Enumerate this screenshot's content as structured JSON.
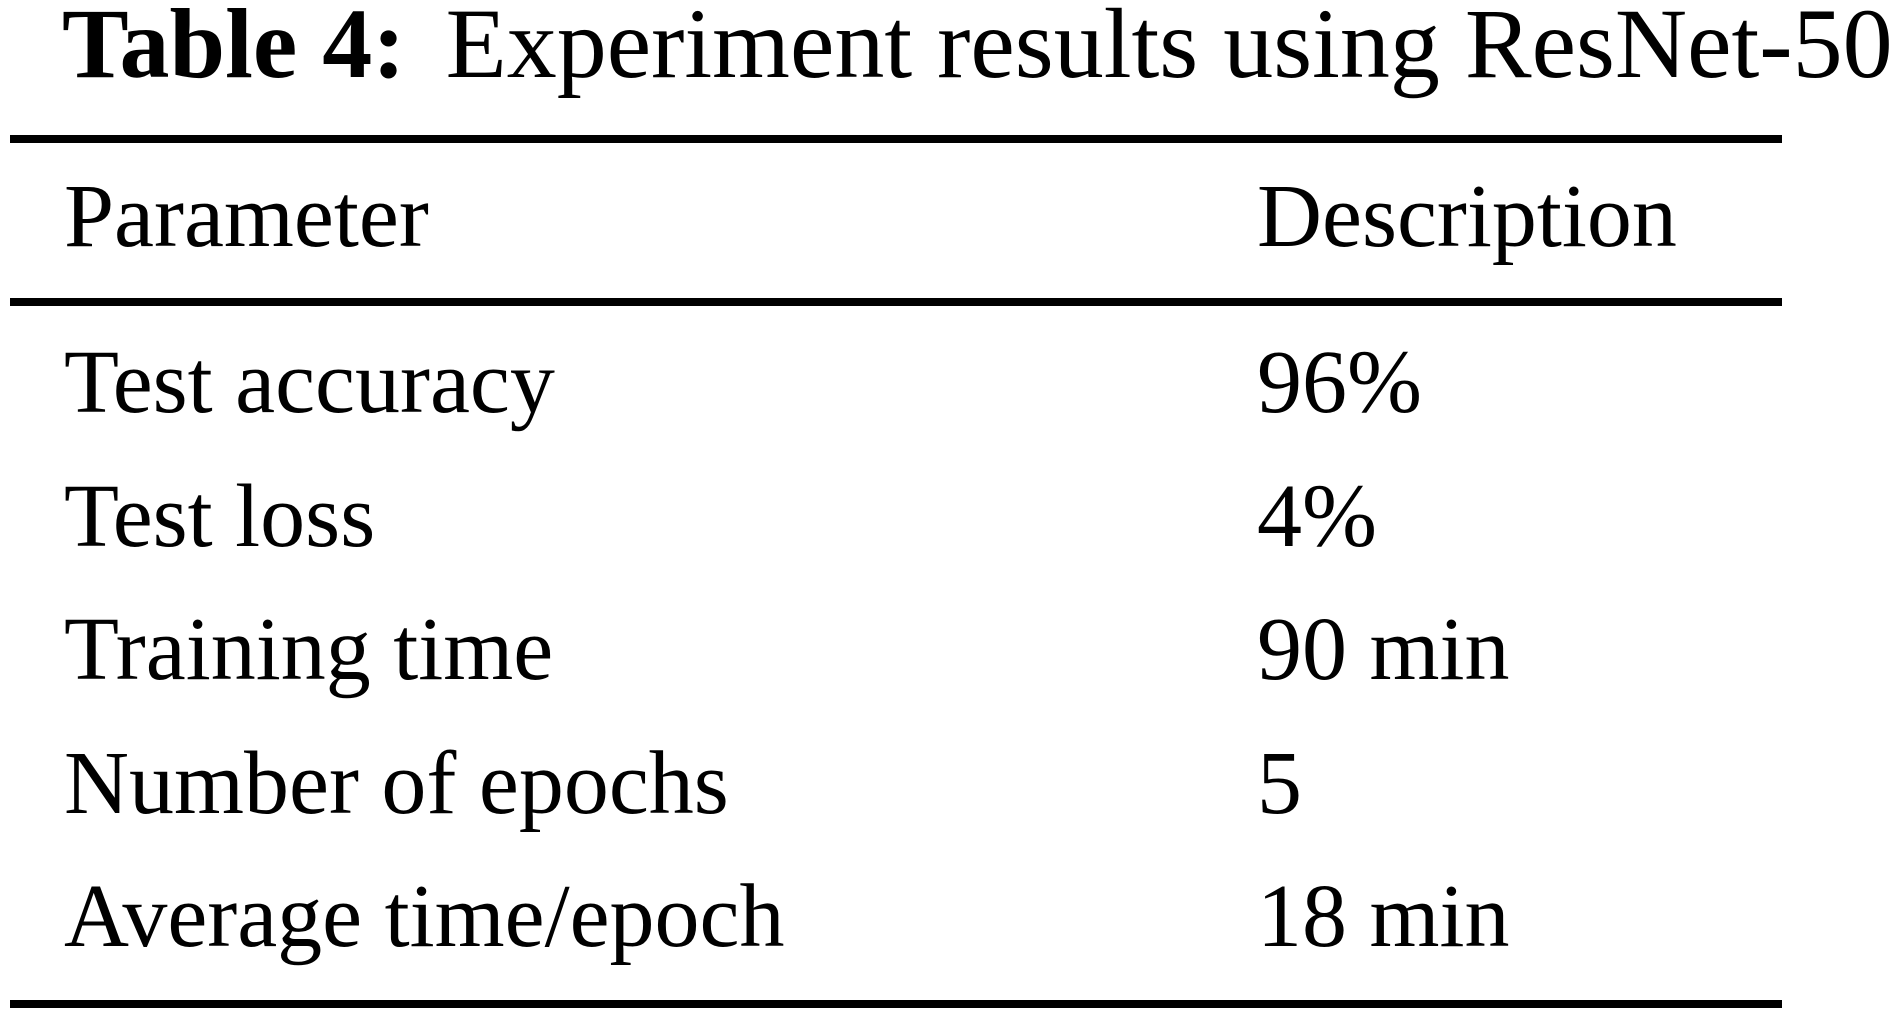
{
  "table": {
    "caption": {
      "label": "Table 4:",
      "text": "Experiment results using ResNet-50"
    },
    "columns": {
      "parameter": "Parameter",
      "description": "Description"
    },
    "rows": [
      {
        "parameter": "Test accuracy",
        "description": "96%"
      },
      {
        "parameter": "Test loss",
        "description": "4%"
      },
      {
        "parameter": "Training time",
        "description": "90 min"
      },
      {
        "parameter": "Number of epochs",
        "description": "5"
      },
      {
        "parameter": "Average time/epoch",
        "description": "18 min"
      }
    ],
    "colors": {
      "text": "#000000",
      "background": "#ffffff",
      "rule": "#000000"
    }
  }
}
